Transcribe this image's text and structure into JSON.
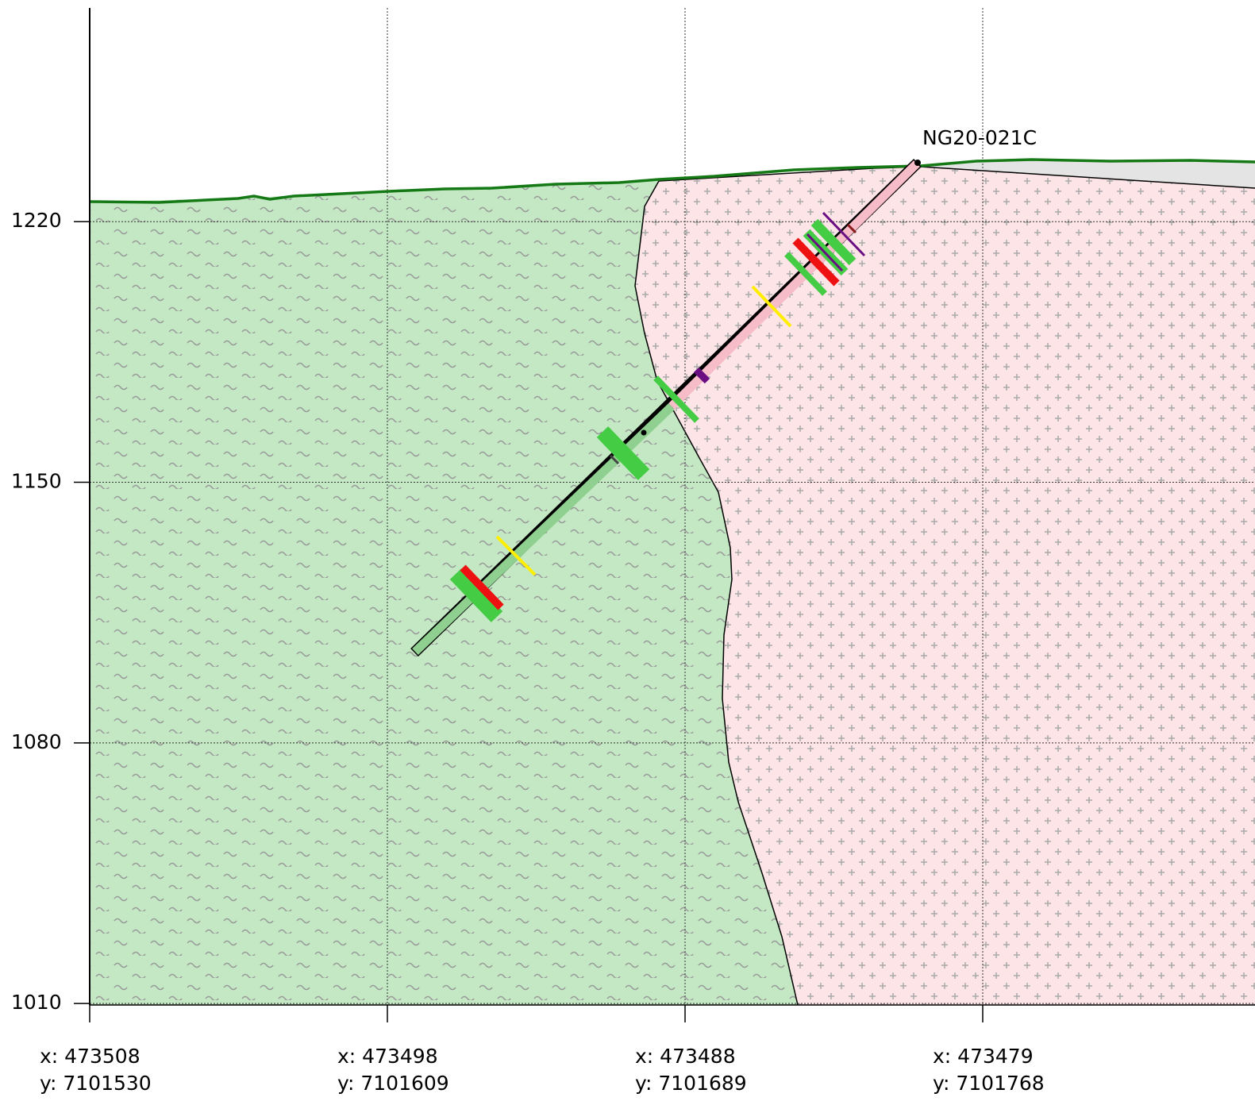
{
  "chart_data": {
    "type": "section",
    "hole": "NG20-021C",
    "ylim": [
      1009.6,
      1277.4
    ],
    "yticks": [
      1010,
      1080,
      1150,
      1220
    ],
    "categories": [
      [
        "x: 473508",
        "y: 7101530"
      ],
      [
        "x: 473498",
        "y: 7101609"
      ],
      [
        "x: 473488",
        "y: 7101689"
      ],
      [
        "x: 473479",
        "y: 7101768"
      ]
    ],
    "grid": true
  }
}
